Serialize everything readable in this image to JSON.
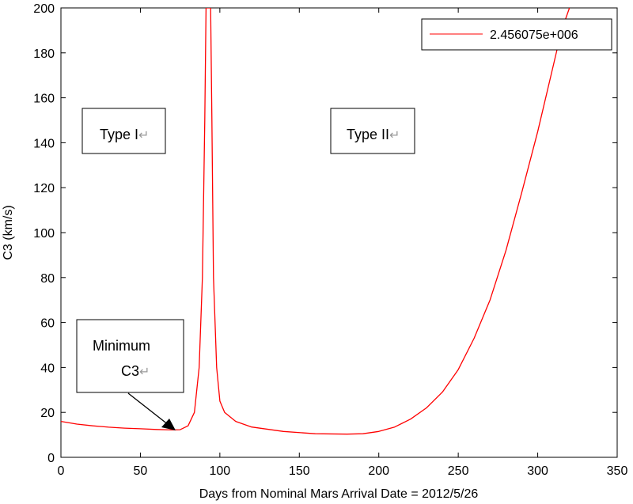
{
  "chart_data": {
    "type": "line",
    "xlabel": "Days from Nominal Mars Arrival Date = 2012/5/26",
    "ylabel": "C3 (km/s)",
    "xlim": [
      0,
      350
    ],
    "ylim": [
      0,
      200
    ],
    "x_ticks": [
      "0",
      "50",
      "100",
      "150",
      "200",
      "250",
      "300",
      "350"
    ],
    "y_ticks": [
      "0",
      "20",
      "40",
      "60",
      "80",
      "100",
      "120",
      "140",
      "160",
      "180",
      "200"
    ],
    "grid": false,
    "legend_position": "top-right",
    "series": [
      {
        "name": "2.456075e+006",
        "color": "#ff0000",
        "points": [
          [
            0,
            16
          ],
          [
            10,
            14.8
          ],
          [
            20,
            14
          ],
          [
            30,
            13.4
          ],
          [
            40,
            13
          ],
          [
            50,
            12.7
          ],
          [
            60,
            12.4
          ],
          [
            70,
            12.2
          ],
          [
            75,
            12.3
          ],
          [
            80,
            14
          ],
          [
            84,
            20
          ],
          [
            87,
            40
          ],
          [
            89,
            80
          ],
          [
            90.5,
            150
          ],
          [
            91.3,
            200
          ],
          [
            94.2,
            200
          ],
          [
            95,
            150
          ],
          [
            96,
            80
          ],
          [
            98,
            40
          ],
          [
            100,
            25
          ],
          [
            103,
            20
          ],
          [
            110,
            16
          ],
          [
            120,
            13.5
          ],
          [
            140,
            11.5
          ],
          [
            160,
            10.5
          ],
          [
            180,
            10.3
          ],
          [
            190,
            10.5
          ],
          [
            200,
            11.5
          ],
          [
            210,
            13.5
          ],
          [
            220,
            17
          ],
          [
            230,
            22
          ],
          [
            240,
            29
          ],
          [
            250,
            39
          ],
          [
            260,
            53
          ],
          [
            270,
            70
          ],
          [
            280,
            92
          ],
          [
            290,
            118
          ],
          [
            300,
            145
          ],
          [
            310,
            175
          ],
          [
            315,
            190
          ],
          [
            320,
            200
          ]
        ]
      }
    ],
    "annotations": [
      {
        "text_lines": [
          "Type I"
        ],
        "return_mark": "↵"
      },
      {
        "text_lines": [
          "Type II"
        ],
        "return_mark": "↵"
      },
      {
        "text_lines": [
          "Minimum",
          "C3"
        ],
        "return_mark": "↵"
      }
    ]
  }
}
